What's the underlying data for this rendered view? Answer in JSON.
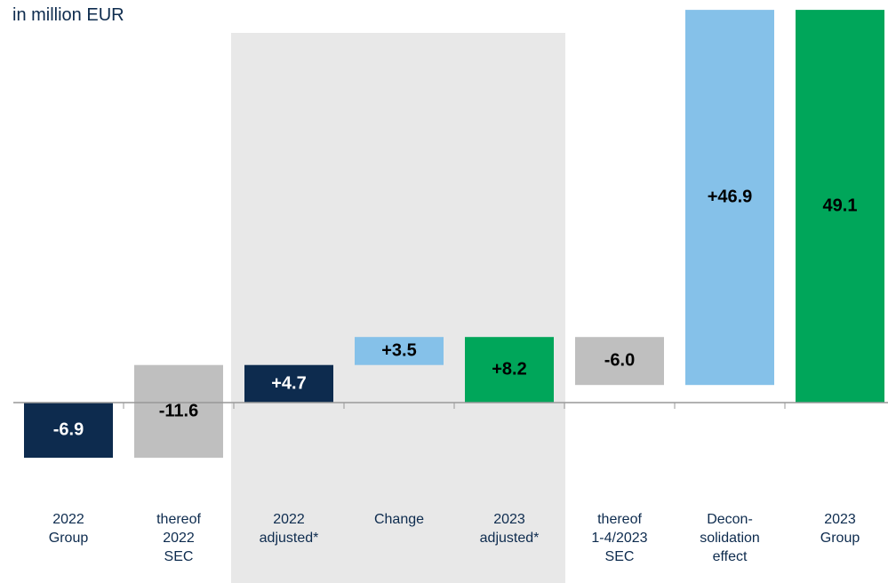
{
  "chart_data": {
    "type": "waterfall",
    "subtitle": "in million EUR",
    "categories": [
      "2022\nGroup",
      "thereof\n2022\nSEC",
      "2022\nadjusted*",
      "Change",
      "2023\nadjusted*",
      "thereof\n1-4/2023\nSEC",
      "Decon-\nsolidation\neffect",
      "2023\nGroup"
    ],
    "values": [
      -6.9,
      -11.6,
      4.7,
      3.5,
      8.2,
      -6.0,
      46.9,
      49.1
    ],
    "value_labels": [
      "-6.9",
      "-11.6",
      "+4.7",
      "+3.5",
      "+8.2",
      "-6.0",
      "+46.9",
      "49.1"
    ],
    "measure": [
      "absolute",
      "reverse",
      "absolute",
      "relative",
      "absolute",
      "relative",
      "relative",
      "absolute"
    ],
    "colors": [
      "#0d2b4e",
      "#bfbfbf",
      "#0d2b4e",
      "#85c1e9",
      "#00a65a",
      "#bfbfbf",
      "#85c1e9",
      "#00a65a"
    ]
  }
}
